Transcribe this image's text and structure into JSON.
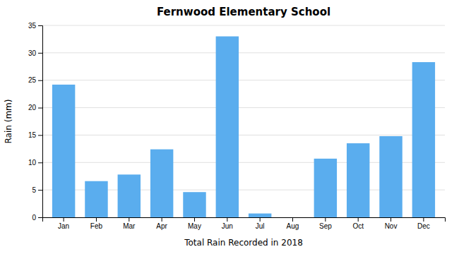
{
  "chart_data": {
    "type": "bar",
    "title": "Fernwood Elementary School",
    "xlabel": "Total Rain Recorded in 2018",
    "ylabel": "Rain (mm)",
    "categories": [
      "Jan",
      "Feb",
      "Mar",
      "Apr",
      "May",
      "Jun",
      "Jul",
      "Aug",
      "Sep",
      "Oct",
      "Nov",
      "Dec"
    ],
    "values": [
      24.2,
      6.6,
      7.8,
      12.4,
      4.6,
      33.0,
      0.7,
      0.0,
      10.7,
      13.5,
      14.8,
      28.3
    ],
    "color": "#5AADEE",
    "ylim": [
      0,
      35
    ],
    "yticks": [
      0,
      5,
      10,
      15,
      20,
      25,
      30,
      35
    ],
    "grid": true
  }
}
